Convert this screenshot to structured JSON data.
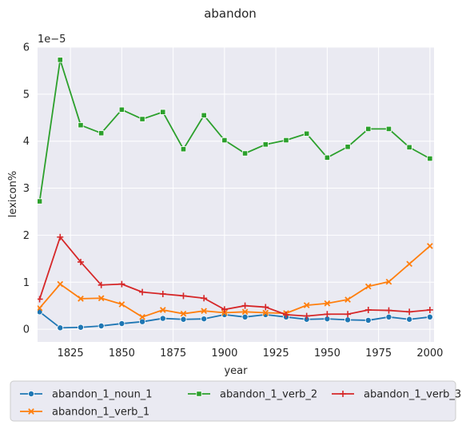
{
  "chart_data": {
    "type": "line",
    "title": "abandon",
    "xlabel": "year",
    "ylabel": "lexicon%",
    "y_scale_label": "1e−5",
    "xlim": [
      1809,
      2002
    ],
    "ylim": [
      -0.27,
      6.0
    ],
    "x_ticks": [
      1825,
      1850,
      1875,
      1900,
      1925,
      1950,
      1975,
      2000
    ],
    "y_ticks": [
      0,
      1,
      2,
      3,
      4,
      5,
      6
    ],
    "grid": true,
    "legend_placement": "bottom",
    "x": [
      1810,
      1820,
      1830,
      1840,
      1850,
      1860,
      1870,
      1880,
      1890,
      1900,
      1910,
      1920,
      1930,
      1940,
      1950,
      1960,
      1970,
      1980,
      1990,
      2000
    ],
    "series": [
      {
        "name": "abandon_1_noun_1",
        "color": "#1f77b4",
        "marker": "circle",
        "values": [
          0.37,
          0.03,
          0.04,
          0.07,
          0.12,
          0.16,
          0.23,
          0.21,
          0.22,
          0.31,
          0.26,
          0.31,
          0.26,
          0.21,
          0.22,
          0.2,
          0.19,
          0.26,
          0.21,
          0.26
        ]
      },
      {
        "name": "abandon_1_verb_1",
        "color": "#ff7f0e",
        "marker": "x",
        "values": [
          0.45,
          0.96,
          0.65,
          0.66,
          0.53,
          0.26,
          0.41,
          0.33,
          0.39,
          0.35,
          0.37,
          0.35,
          0.34,
          0.51,
          0.55,
          0.63,
          0.91,
          1.01,
          1.39,
          1.77
        ]
      },
      {
        "name": "abandon_1_verb_2",
        "color": "#2ca02c",
        "marker": "square",
        "values": [
          2.72,
          5.73,
          4.34,
          4.17,
          4.67,
          4.47,
          4.62,
          3.83,
          4.55,
          4.02,
          3.74,
          3.93,
          4.02,
          4.16,
          3.65,
          3.88,
          4.26,
          4.26,
          3.87,
          3.63
        ]
      },
      {
        "name": "abandon_1_verb_3",
        "color": "#d62728",
        "marker": "plus",
        "values": [
          0.64,
          1.96,
          1.43,
          0.94,
          0.96,
          0.79,
          0.75,
          0.71,
          0.66,
          0.42,
          0.5,
          0.47,
          0.31,
          0.28,
          0.32,
          0.32,
          0.41,
          0.4,
          0.37,
          0.41
        ]
      }
    ]
  }
}
